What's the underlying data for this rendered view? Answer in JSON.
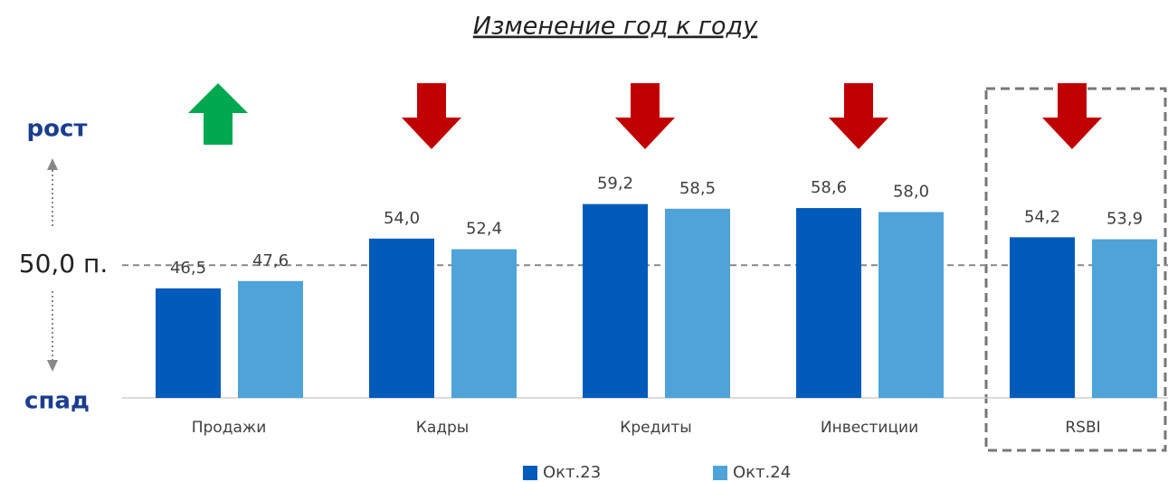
{
  "chart_data": {
    "type": "bar",
    "title": "Изменение год к году",
    "categories": [
      "Продажи",
      "Кадры",
      "Кредиты",
      "Инвестиции",
      "RSBI"
    ],
    "series": [
      {
        "name": "Окт.23",
        "color": "#005bbb",
        "values": [
          46.5,
          54.0,
          59.2,
          58.6,
          54.2
        ],
        "value_labels": [
          "46,5",
          "54,0",
          "59,2",
          "58,6",
          "54,2"
        ]
      },
      {
        "name": "Окт.24",
        "color": "#4ea3d9",
        "values": [
          47.6,
          52.4,
          58.5,
          58.0,
          53.9
        ],
        "value_labels": [
          "47,6",
          "52,4",
          "58,5",
          "58,0",
          "53,9"
        ]
      }
    ],
    "ylim": [
      30,
      80
    ],
    "reference_line": {
      "value": 50,
      "label": "50,0 п."
    },
    "up_label": "рост",
    "down_label": "спад",
    "arrows": [
      "up",
      "down",
      "down",
      "down",
      "down"
    ],
    "arrow_colors": {
      "up": "#00a84f",
      "down": "#c00000"
    },
    "legend": "bottom"
  }
}
